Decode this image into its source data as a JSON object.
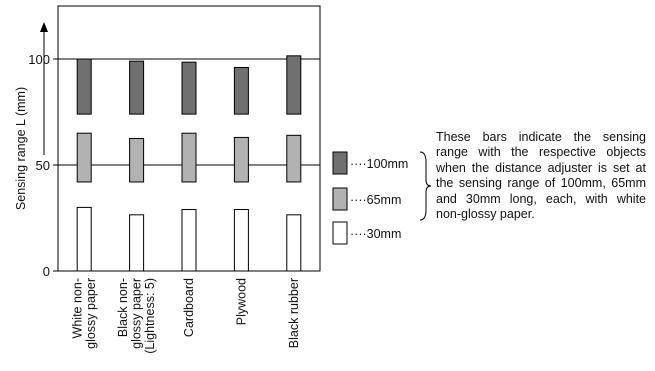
{
  "chart_data": {
    "type": "bar",
    "ylabel": "Sensing range L (mm)",
    "xlabel": "",
    "ylim": [
      0,
      125
    ],
    "yticks": [
      0,
      50,
      100
    ],
    "grid_lines": [
      50,
      100
    ],
    "categories": [
      "White non-glossy paper",
      "Black non-glossy paper (Lightness: 5)",
      "Cardboard",
      "Plywood",
      "Black rubber"
    ],
    "category_lines": [
      [
        "White non-",
        "glossy paper"
      ],
      [
        "Black non-",
        "glossy paper",
        "(Lightness: 5)"
      ],
      [
        "Cardboard"
      ],
      [
        "Plywood"
      ],
      [
        "Black rubber"
      ]
    ],
    "series": [
      {
        "name": "100mm",
        "legend_label": "····100mm",
        "color": "#707070",
        "values": [
          100,
          99,
          98.5,
          96,
          101.5
        ],
        "bar_bottom": 74
      },
      {
        "name": "65mm",
        "legend_label": "····65mm",
        "color": "#b2b2b2",
        "values": [
          65,
          62.5,
          65,
          63,
          64
        ],
        "bar_bottom": 42
      },
      {
        "name": "30mm",
        "legend_label": "····30mm",
        "color": "#ffffff",
        "values": [
          30,
          26.5,
          29,
          29,
          26.5
        ],
        "bar_bottom": 0
      }
    ],
    "legend_position": "right"
  },
  "note": "These bars indicate the sensing range with the respective objects when the distance adjuster is set at the sensing range of 100mm, 65mm and 30mm long, each, with white non-glossy paper.",
  "colors": {
    "axis": "#000000",
    "text": "#111111"
  }
}
